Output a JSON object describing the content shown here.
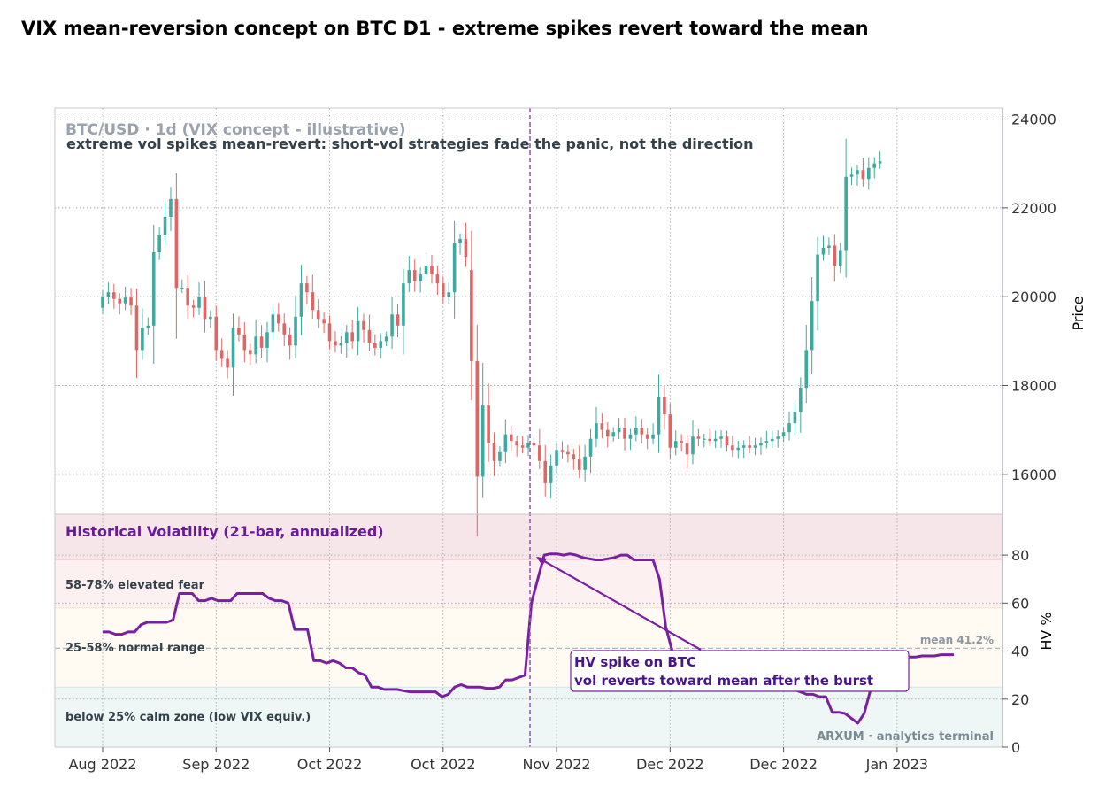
{
  "title": "VIX mean-reversion concept on BTC D1 - extreme spikes revert toward the mean",
  "colors": {
    "up": "#3ea99f",
    "down": "#e06666",
    "hv_line": "#7b1fa2",
    "marker": "#9b59b6",
    "zone_extreme": "#f7e6e9",
    "zone_elevated": "#fdf0f1",
    "zone_normal": "#fffbf3",
    "zone_calm": "#eef7f6"
  },
  "chart_data": [
    {
      "type": "candlestick",
      "subtitle": "BTC/USD · 1d  (VIX concept - illustrative)",
      "note": "extreme vol spikes mean-revert: short-vol strategies fade the panic, not the direction",
      "ylabel": "Price",
      "ylim": [
        15100,
        24250
      ],
      "yticks": [
        16000,
        18000,
        20000,
        22000,
        24000
      ],
      "xlabels": [
        "Aug 2022",
        "Sep 2022",
        "Oct 2022",
        "Oct 2022",
        "Nov 2022",
        "Dec 2022",
        "Dec 2022",
        "Jan 2023"
      ],
      "xlabel_bars": [
        0,
        20,
        40,
        60,
        80,
        100,
        120,
        140
      ],
      "n_bars": 151,
      "marker_bar": 75,
      "close": [
        20000,
        20100,
        19950,
        19850,
        19980,
        19800,
        18800,
        19300,
        19350,
        21000,
        21400,
        21800,
        22200,
        20200,
        20200,
        19800,
        19750,
        20000,
        19500,
        19550,
        18800,
        18600,
        18400,
        19300,
        19150,
        18800,
        18700,
        19100,
        18850,
        19200,
        19600,
        19400,
        19150,
        18900,
        19550,
        20300,
        20100,
        19700,
        19500,
        19400,
        19000,
        18900,
        18950,
        19200,
        19000,
        19450,
        19250,
        18950,
        18850,
        19000,
        19100,
        19600,
        19350,
        20300,
        20600,
        20350,
        20500,
        20700,
        20500,
        20300,
        20000,
        20100,
        21200,
        21300,
        20900,
        18550,
        15950,
        17550,
        16700,
        16300,
        16500,
        16900,
        16750,
        16650,
        16600,
        16700,
        16650,
        16300,
        15800,
        16200,
        16550,
        16500,
        16450,
        16350,
        16100,
        16400,
        16800,
        17150,
        17000,
        16850,
        16950,
        17050,
        16800,
        16900,
        17050,
        16900,
        16800,
        16900,
        17750,
        17350,
        16600,
        16750,
        16700,
        16450,
        16850,
        16800,
        16800,
        16750,
        16800,
        16850,
        16650,
        16550,
        16600,
        16650,
        16600,
        16650,
        16700,
        16750,
        16800,
        16850,
        16950,
        17150,
        17400,
        17950,
        18800,
        19900,
        20950,
        21100,
        21150,
        20700,
        21050,
        22700,
        22750,
        22850,
        22650,
        22900,
        23000,
        23050
      ],
      "open": [
        19750,
        20000,
        20100,
        19950,
        19850,
        19980,
        19800,
        18800,
        19300,
        19350,
        21000,
        21400,
        21800,
        22200,
        20200,
        20200,
        19800,
        19750,
        20000,
        19500,
        19550,
        18800,
        18600,
        18400,
        19300,
        19150,
        18800,
        18700,
        19100,
        18850,
        19200,
        19600,
        19400,
        19150,
        18900,
        19550,
        20300,
        20100,
        19700,
        19500,
        19400,
        19000,
        18900,
        18950,
        19200,
        19000,
        19450,
        19250,
        18950,
        18850,
        19000,
        19100,
        19600,
        19350,
        20300,
        20600,
        20350,
        20500,
        20700,
        20500,
        20300,
        20000,
        20100,
        21200,
        21300,
        20600,
        18550,
        15950,
        17550,
        16700,
        16300,
        16500,
        16900,
        16750,
        16650,
        16600,
        16700,
        16650,
        16300,
        15800,
        16200,
        16550,
        16500,
        16450,
        16350,
        16100,
        16400,
        16800,
        17150,
        17000,
        16850,
        16950,
        17050,
        16800,
        16900,
        17050,
        16900,
        16800,
        16900,
        17750,
        17350,
        16600,
        16750,
        16700,
        16450,
        16850,
        16800,
        16800,
        16750,
        16800,
        16850,
        16650,
        16550,
        16600,
        16650,
        16600,
        16650,
        16700,
        16750,
        16800,
        16850,
        16950,
        17150,
        17400,
        17950,
        18800,
        19900,
        20950,
        21100,
        21150,
        20700,
        21050,
        22700,
        22750,
        22850,
        22650,
        22900,
        23000
      ],
      "note_bars": "Candle bars: bar 0..137 mapped; remaining trail flat",
      "hv": {
        "title": "Historical Volatility (21-bar, annualized)",
        "ylabel": "HV %",
        "ylim": [
          0,
          97
        ],
        "yticks": [
          0,
          20,
          40,
          60,
          80
        ],
        "mean": 41.2,
        "mean_label": "mean 41.2%",
        "zones": [
          {
            "from": 78,
            "to": 97,
            "label": ""
          },
          {
            "from": 58,
            "to": 78,
            "label": "58-78%  elevated fear"
          },
          {
            "from": 25,
            "to": 58,
            "label": "25-58%  normal range"
          },
          {
            "from": 0,
            "to": 25,
            "label": "below 25%  calm zone (low VIX equiv.)"
          }
        ],
        "values": [
          48,
          48,
          47,
          47,
          48,
          48,
          51,
          52,
          52,
          52,
          52,
          53,
          64,
          64,
          64,
          61,
          61,
          62,
          61,
          61,
          61,
          64,
          64,
          64,
          64,
          64,
          62,
          61,
          61,
          60,
          49,
          49,
          49,
          36,
          36,
          35,
          36,
          35,
          33,
          33,
          31,
          30,
          25,
          25,
          24,
          24,
          24,
          23.5,
          23,
          23,
          23,
          23,
          23,
          21,
          22,
          25,
          26,
          25,
          25,
          25,
          24.5,
          24.5,
          25,
          28,
          28,
          29,
          30,
          60,
          70,
          80,
          80.5,
          80.5,
          80,
          80.5,
          80,
          79,
          78.5,
          78,
          78,
          78.5,
          79,
          80,
          80,
          78,
          78,
          78,
          78,
          70,
          50,
          40
        ],
        "hv_tail": [
          39,
          38,
          37,
          36,
          35,
          34,
          33,
          32,
          31,
          30,
          29,
          28,
          28,
          27,
          27,
          26,
          26,
          25,
          24,
          23,
          22,
          22,
          21,
          21,
          14.5,
          14.5,
          14,
          12,
          10,
          14,
          24,
          30,
          35,
          37,
          38,
          38,
          37.5,
          37.5,
          38,
          38,
          38,
          38.5,
          38.5,
          38.5
        ]
      },
      "annotation": {
        "line1": "HV spike on BTC",
        "line2": "vol reverts toward mean after the burst"
      },
      "watermark": "ARXUM · analytics terminal"
    }
  ]
}
